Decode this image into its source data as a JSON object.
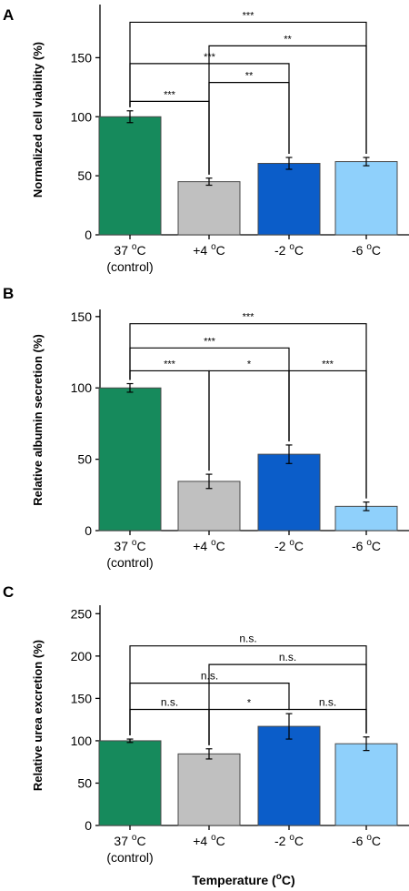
{
  "colors": {
    "37C": "#168a5c",
    "4C": "#c0c0c0",
    "m2C": "#0b5dc9",
    "m6C": "#8fd0fb"
  },
  "categories": [
    {
      "line1": "37 oC",
      "line2": "(control)"
    },
    {
      "line1": "+4 oC",
      "line2": ""
    },
    {
      "line1": "-2 oC",
      "line2": ""
    },
    {
      "line1": "-6 oC",
      "line2": ""
    }
  ],
  "xlabel": "Temperature (oC)",
  "chart_data": [
    {
      "type": "bar",
      "panel": "A",
      "ylabel": "Normalized cell viability (%)",
      "ylim": [
        0,
        195
      ],
      "yticks": [
        0,
        50,
        100,
        150
      ],
      "values": [
        100,
        45,
        60.5,
        62
      ],
      "errors": [
        5,
        3,
        5,
        3.5
      ],
      "brackets": [
        {
          "from": 0,
          "to": 3,
          "level": 180,
          "label": "***"
        },
        {
          "from": 1,
          "to": 3,
          "level": 160,
          "label": "**"
        },
        {
          "from": 0,
          "to": 2,
          "level": 145,
          "label": "***"
        },
        {
          "from": 1,
          "to": 2,
          "level": 129,
          "label": "**"
        },
        {
          "from": 0,
          "to": 1,
          "level": 113,
          "label": "***"
        }
      ]
    },
    {
      "type": "bar",
      "panel": "B",
      "ylabel": "Relative albumin secretion (%)",
      "ylim": [
        0,
        155
      ],
      "yticks": [
        0,
        50,
        100,
        150
      ],
      "values": [
        100,
        34.5,
        53.5,
        17
      ],
      "errors": [
        3,
        5,
        6.5,
        3
      ],
      "brackets": [
        {
          "from": 0,
          "to": 3,
          "level": 145,
          "label": "***"
        },
        {
          "from": 0,
          "to": 2,
          "level": 128,
          "label": "***"
        },
        {
          "from": 0,
          "to": 1,
          "level": 112,
          "label": "***"
        },
        {
          "from": 1,
          "to": 2,
          "level": 112,
          "label": "*"
        },
        {
          "from": 2,
          "to": 3,
          "level": 112,
          "label": "***"
        }
      ]
    },
    {
      "type": "bar",
      "panel": "C",
      "ylabel": "Relative urea excretion (%)",
      "ylim": [
        0,
        260
      ],
      "yticks": [
        0,
        50,
        100,
        150,
        200,
        250
      ],
      "values": [
        100,
        84.5,
        117,
        96.5
      ],
      "errors": [
        2,
        6,
        15,
        8
      ],
      "brackets": [
        {
          "from": 0,
          "to": 3,
          "level": 212,
          "label": "n.s."
        },
        {
          "from": 1,
          "to": 3,
          "level": 190,
          "label": "n.s."
        },
        {
          "from": 0,
          "to": 2,
          "level": 168,
          "label": "n.s."
        },
        {
          "from": 0,
          "to": 1,
          "level": 137,
          "label": "n.s."
        },
        {
          "from": 1,
          "to": 2,
          "level": 137,
          "label": "*"
        },
        {
          "from": 2,
          "to": 3,
          "level": 137,
          "label": "n.s."
        }
      ]
    }
  ]
}
